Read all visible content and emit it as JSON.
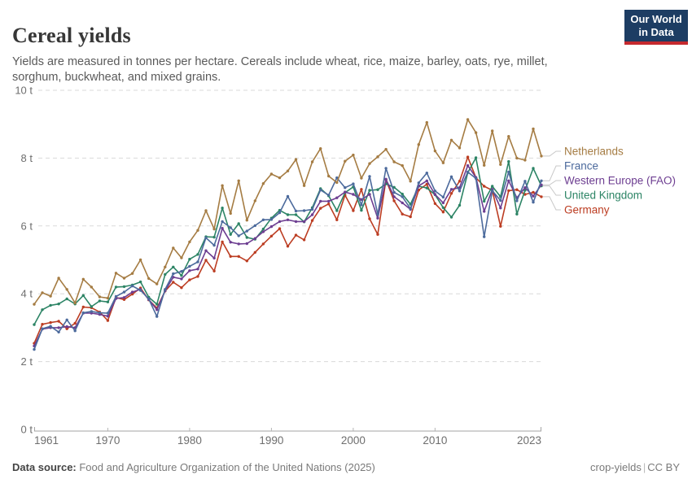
{
  "header": {
    "title": "Cereal yields",
    "subtitle": "Yields are measured in tonnes per hectare. Cereals include wheat, rice, maize, barley, oats, rye, millet, sorghum, buckwheat, and mixed grains.",
    "logo": {
      "line1": "Our World",
      "line2": "in Data",
      "bg_color": "#1d3d63",
      "stripe_color": "#c5292e"
    }
  },
  "chart_data": {
    "type": "line",
    "title": "Cereal yields",
    "unit": "t",
    "ylabel": "tonnes per hectare",
    "ylim": [
      0,
      10
    ],
    "xlim": [
      1961,
      2023
    ],
    "grid": "horizontal-dashed",
    "legend_position": "right",
    "yticks": [
      {
        "value": 0,
        "label": "0 t"
      },
      {
        "value": 2,
        "label": "2 t"
      },
      {
        "value": 4,
        "label": "4 t"
      },
      {
        "value": 6,
        "label": "6 t"
      },
      {
        "value": 8,
        "label": "8 t"
      },
      {
        "value": 10,
        "label": "10 t"
      }
    ],
    "xticks": [
      1961,
      1970,
      1980,
      1990,
      2000,
      2010,
      2023
    ],
    "years": [
      1961,
      1962,
      1963,
      1964,
      1965,
      1966,
      1967,
      1968,
      1969,
      1970,
      1971,
      1972,
      1973,
      1974,
      1975,
      1976,
      1977,
      1978,
      1979,
      1980,
      1981,
      1982,
      1983,
      1984,
      1985,
      1986,
      1987,
      1988,
      1989,
      1990,
      1991,
      1992,
      1993,
      1994,
      1995,
      1996,
      1997,
      1998,
      1999,
      2000,
      2001,
      2002,
      2003,
      2004,
      2005,
      2006,
      2007,
      2008,
      2009,
      2010,
      2011,
      2012,
      2013,
      2014,
      2015,
      2016,
      2017,
      2018,
      2019,
      2020,
      2021,
      2022,
      2023
    ],
    "series": [
      {
        "name": "Netherlands",
        "color": "#A57C43",
        "values": [
          3.69,
          4.03,
          3.93,
          4.46,
          4.13,
          3.73,
          4.43,
          4.2,
          3.91,
          3.87,
          4.61,
          4.46,
          4.6,
          5.0,
          4.45,
          4.29,
          4.79,
          5.35,
          5.06,
          5.53,
          5.87,
          6.45,
          5.91,
          7.19,
          6.37,
          7.33,
          6.17,
          6.74,
          7.25,
          7.53,
          7.42,
          7.62,
          7.96,
          7.19,
          7.89,
          8.28,
          7.47,
          7.28,
          7.91,
          8.09,
          7.41,
          7.84,
          8.04,
          8.26,
          7.89,
          7.78,
          7.32,
          8.4,
          9.05,
          8.21,
          7.86,
          8.53,
          8.3,
          9.14,
          8.75,
          7.79,
          8.8,
          7.81,
          8.64,
          8.0,
          7.94,
          8.86,
          8.06
        ]
      },
      {
        "name": "France",
        "color": "#4C6A9C",
        "values": [
          2.36,
          2.97,
          3.04,
          2.87,
          3.23,
          2.91,
          3.44,
          3.48,
          3.44,
          3.43,
          3.92,
          4.05,
          4.23,
          4.1,
          3.85,
          3.33,
          4.13,
          4.59,
          4.66,
          4.81,
          4.94,
          5.65,
          5.43,
          6.13,
          5.95,
          5.71,
          5.85,
          6.01,
          6.18,
          6.19,
          6.39,
          6.87,
          6.44,
          6.45,
          6.49,
          7.06,
          6.91,
          7.42,
          7.13,
          7.24,
          6.62,
          7.46,
          6.34,
          7.7,
          6.99,
          6.86,
          6.51,
          7.27,
          7.56,
          7.03,
          6.85,
          7.45,
          7.03,
          7.59,
          7.4,
          5.68,
          7.04,
          6.75,
          7.59,
          6.74,
          7.32,
          6.7,
          7.33
        ]
      },
      {
        "name": "Western Europe (FAO)",
        "color": "#6D3E91",
        "values": [
          2.46,
          2.96,
          3.0,
          3.0,
          3.03,
          3.0,
          3.43,
          3.43,
          3.39,
          3.34,
          3.86,
          3.89,
          4.05,
          4.13,
          3.83,
          3.53,
          4.09,
          4.49,
          4.44,
          4.68,
          4.73,
          5.27,
          5.05,
          5.93,
          5.52,
          5.47,
          5.48,
          5.63,
          5.83,
          5.98,
          6.13,
          6.18,
          6.13,
          6.13,
          6.33,
          6.73,
          6.73,
          6.83,
          7.0,
          6.93,
          6.78,
          6.93,
          6.23,
          7.38,
          6.86,
          6.68,
          6.49,
          7.18,
          7.33,
          6.93,
          6.68,
          7.08,
          7.13,
          7.78,
          7.43,
          6.43,
          7.08,
          6.53,
          7.33,
          6.83,
          7.13,
          6.88,
          7.21
        ]
      },
      {
        "name": "United Kingdom",
        "color": "#2C8465",
        "values": [
          3.09,
          3.53,
          3.66,
          3.7,
          3.85,
          3.7,
          3.95,
          3.62,
          3.79,
          3.76,
          4.2,
          4.21,
          4.26,
          4.35,
          3.9,
          3.69,
          4.57,
          4.79,
          4.54,
          5.02,
          5.16,
          5.68,
          5.67,
          6.53,
          5.75,
          6.07,
          5.66,
          5.61,
          5.91,
          6.23,
          6.46,
          6.33,
          6.33,
          6.12,
          6.54,
          7.1,
          6.89,
          6.45,
          6.98,
          7.15,
          6.46,
          7.05,
          7.07,
          7.24,
          7.14,
          6.94,
          6.64,
          7.17,
          7.12,
          6.92,
          6.54,
          6.26,
          6.61,
          7.57,
          8.01,
          6.73,
          7.17,
          6.86,
          7.9,
          6.35,
          7.05,
          7.7,
          7.18
        ]
      },
      {
        "name": "Germany",
        "color": "#BC3D22",
        "values": [
          2.54,
          3.1,
          3.15,
          3.19,
          2.97,
          3.13,
          3.61,
          3.59,
          3.46,
          3.21,
          3.89,
          3.83,
          3.99,
          4.17,
          3.82,
          3.58,
          4.08,
          4.34,
          4.18,
          4.41,
          4.51,
          4.99,
          4.67,
          5.53,
          5.1,
          5.1,
          4.97,
          5.22,
          5.47,
          5.7,
          5.92,
          5.4,
          5.73,
          5.59,
          6.16,
          6.52,
          6.65,
          6.18,
          6.91,
          6.45,
          7.08,
          6.21,
          5.75,
          7.36,
          6.74,
          6.35,
          6.27,
          7.06,
          7.23,
          6.66,
          6.41,
          6.96,
          7.32,
          8.03,
          7.42,
          7.17,
          7.05,
          5.99,
          7.04,
          7.07,
          6.93,
          6.99,
          6.86
        ]
      }
    ],
    "colors": {
      "grid": "#d9d9d9",
      "axis": "#a3a3a3",
      "tick": "#b5b5b5",
      "axis_text": "#6e6e6e",
      "connector": "#c8c8c8"
    }
  },
  "footer": {
    "source_label": "Data source:",
    "source_text": " Food and Agriculture Organization of the United Nations (2025)",
    "slug": "crop-yields",
    "separator": "|",
    "license": "CC BY"
  }
}
